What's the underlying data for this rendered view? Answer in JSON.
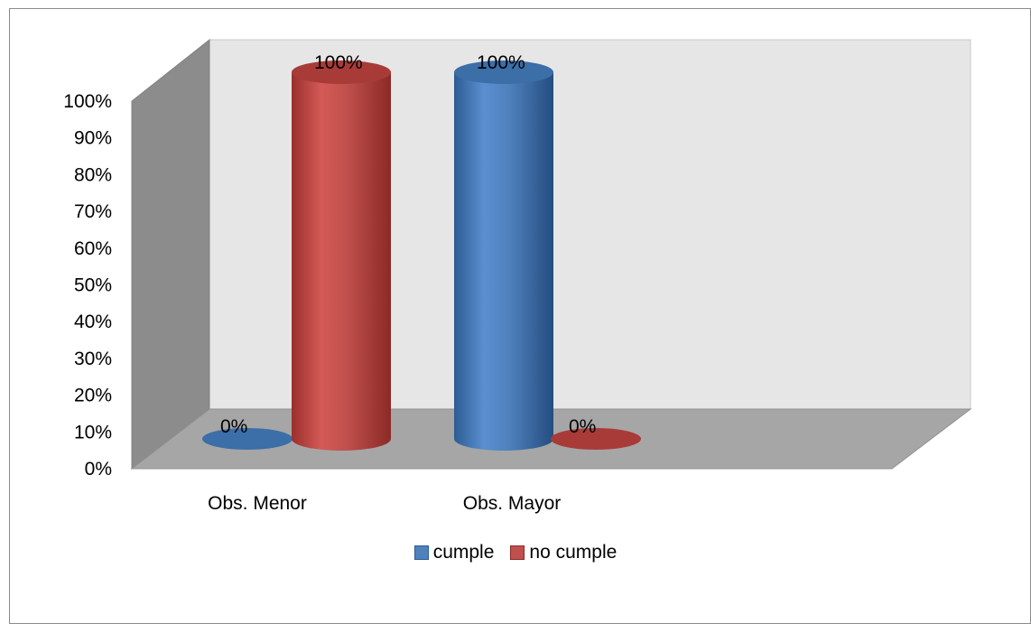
{
  "chart_data": {
    "type": "bar",
    "subtype": "3d-cylinder",
    "categories": [
      "Obs. Menor",
      "Obs. Mayor"
    ],
    "series": [
      {
        "name": "cumple",
        "color": "#4f81bd",
        "values": [
          0,
          100
        ],
        "labels": [
          "0%",
          "100%"
        ]
      },
      {
        "name": "no cumple",
        "color": "#c0504d",
        "values": [
          100,
          0
        ],
        "labels": [
          "100%",
          "0%"
        ]
      }
    ],
    "y_ticks": [
      "0%",
      "10%",
      "20%",
      "30%",
      "40%",
      "50%",
      "60%",
      "70%",
      "80%",
      "90%",
      "100%"
    ],
    "ylim": [
      0,
      100
    ],
    "grid": false,
    "legend_position": "bottom"
  }
}
